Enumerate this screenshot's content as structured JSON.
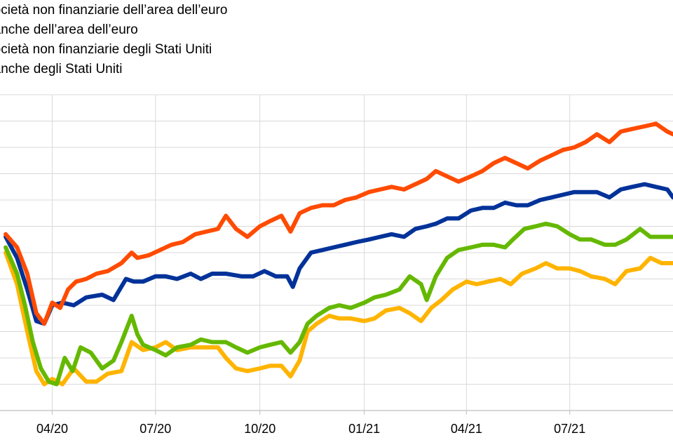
{
  "legend": {
    "items": [
      {
        "label": "Società non finanziarie dell’area dell’euro",
        "color": "#ff4b00"
      },
      {
        "label": "Banche dell’area dell’euro",
        "color": "#003299"
      },
      {
        "label": "Società non finanziarie degli Stati Uniti",
        "color": "#65b800"
      },
      {
        "label": "Banche degli Stati Uniti",
        "color": "#ffb400"
      }
    ]
  },
  "chart_data": {
    "type": "line",
    "title": "",
    "xlabel": "",
    "ylabel": "",
    "x_ticks": [
      "04/20",
      "07/20",
      "10/20",
      "01/21",
      "04/21",
      "07/21"
    ],
    "x_range": [
      "2020-02-15",
      "2021-09-30"
    ],
    "y_range": [
      0,
      12
    ],
    "grid": true,
    "series": [
      {
        "name": "Società non finanziarie dell’area dell’euro",
        "color": "#ff4b00",
        "points": [
          [
            "2020-02-20",
            6.7
          ],
          [
            "2020-03-01",
            6.2
          ],
          [
            "2020-03-10",
            5.2
          ],
          [
            "2020-03-18",
            3.7
          ],
          [
            "2020-03-25",
            3.3
          ],
          [
            "2020-04-01",
            4.1
          ],
          [
            "2020-04-08",
            3.9
          ],
          [
            "2020-04-15",
            4.6
          ],
          [
            "2020-04-22",
            4.9
          ],
          [
            "2020-05-01",
            5.0
          ],
          [
            "2020-05-10",
            5.2
          ],
          [
            "2020-05-20",
            5.3
          ],
          [
            "2020-06-01",
            5.6
          ],
          [
            "2020-06-10",
            6.0
          ],
          [
            "2020-06-15",
            5.8
          ],
          [
            "2020-06-25",
            5.9
          ],
          [
            "2020-07-05",
            6.1
          ],
          [
            "2020-07-15",
            6.3
          ],
          [
            "2020-07-25",
            6.4
          ],
          [
            "2020-08-05",
            6.7
          ],
          [
            "2020-08-15",
            6.8
          ],
          [
            "2020-08-25",
            6.9
          ],
          [
            "2020-09-01",
            7.4
          ],
          [
            "2020-09-10",
            6.9
          ],
          [
            "2020-09-20",
            6.6
          ],
          [
            "2020-10-01",
            7.0
          ],
          [
            "2020-10-10",
            7.2
          ],
          [
            "2020-10-20",
            7.4
          ],
          [
            "2020-10-28",
            6.8
          ],
          [
            "2020-11-05",
            7.5
          ],
          [
            "2020-11-15",
            7.7
          ],
          [
            "2020-11-25",
            7.8
          ],
          [
            "2020-12-05",
            7.8
          ],
          [
            "2020-12-15",
            8.0
          ],
          [
            "2020-12-25",
            8.1
          ],
          [
            "2021-01-05",
            8.3
          ],
          [
            "2021-01-15",
            8.4
          ],
          [
            "2021-01-25",
            8.5
          ],
          [
            "2021-02-05",
            8.4
          ],
          [
            "2021-02-15",
            8.6
          ],
          [
            "2021-02-25",
            8.8
          ],
          [
            "2021-03-05",
            9.1
          ],
          [
            "2021-03-15",
            8.9
          ],
          [
            "2021-03-25",
            8.7
          ],
          [
            "2021-04-05",
            8.9
          ],
          [
            "2021-04-15",
            9.1
          ],
          [
            "2021-04-25",
            9.4
          ],
          [
            "2021-05-05",
            9.6
          ],
          [
            "2021-05-15",
            9.4
          ],
          [
            "2021-05-25",
            9.2
          ],
          [
            "2021-06-05",
            9.5
          ],
          [
            "2021-06-15",
            9.7
          ],
          [
            "2021-06-25",
            9.9
          ],
          [
            "2021-07-05",
            10.0
          ],
          [
            "2021-07-15",
            10.2
          ],
          [
            "2021-07-25",
            10.5
          ],
          [
            "2021-08-05",
            10.2
          ],
          [
            "2021-08-15",
            10.6
          ],
          [
            "2021-08-25",
            10.7
          ],
          [
            "2021-09-05",
            10.8
          ],
          [
            "2021-09-15",
            10.9
          ],
          [
            "2021-09-25",
            10.6
          ],
          [
            "2021-09-30",
            10.5
          ]
        ]
      },
      {
        "name": "Banche dell’area dell’euro",
        "color": "#003299",
        "points": [
          [
            "2020-02-20",
            6.6
          ],
          [
            "2020-03-01",
            5.8
          ],
          [
            "2020-03-10",
            4.6
          ],
          [
            "2020-03-18",
            3.4
          ],
          [
            "2020-03-25",
            3.3
          ],
          [
            "2020-04-01",
            4.0
          ],
          [
            "2020-04-10",
            4.1
          ],
          [
            "2020-04-20",
            4.0
          ],
          [
            "2020-05-01",
            4.3
          ],
          [
            "2020-05-15",
            4.4
          ],
          [
            "2020-05-25",
            4.2
          ],
          [
            "2020-06-05",
            5.0
          ],
          [
            "2020-06-12",
            4.9
          ],
          [
            "2020-06-20",
            4.9
          ],
          [
            "2020-07-01",
            5.1
          ],
          [
            "2020-07-10",
            5.1
          ],
          [
            "2020-07-20",
            5.0
          ],
          [
            "2020-08-01",
            5.2
          ],
          [
            "2020-08-10",
            5.0
          ],
          [
            "2020-08-20",
            5.2
          ],
          [
            "2020-09-01",
            5.2
          ],
          [
            "2020-09-15",
            5.1
          ],
          [
            "2020-09-25",
            5.1
          ],
          [
            "2020-10-05",
            5.3
          ],
          [
            "2020-10-15",
            5.1
          ],
          [
            "2020-10-25",
            5.1
          ],
          [
            "2020-10-30",
            4.7
          ],
          [
            "2020-11-05",
            5.4
          ],
          [
            "2020-11-15",
            6.0
          ],
          [
            "2020-11-25",
            6.1
          ],
          [
            "2020-12-05",
            6.2
          ],
          [
            "2020-12-15",
            6.3
          ],
          [
            "2020-12-25",
            6.4
          ],
          [
            "2021-01-05",
            6.5
          ],
          [
            "2021-01-15",
            6.6
          ],
          [
            "2021-01-25",
            6.7
          ],
          [
            "2021-02-05",
            6.6
          ],
          [
            "2021-02-15",
            6.9
          ],
          [
            "2021-02-25",
            7.0
          ],
          [
            "2021-03-05",
            7.1
          ],
          [
            "2021-03-15",
            7.3
          ],
          [
            "2021-03-25",
            7.3
          ],
          [
            "2021-04-05",
            7.6
          ],
          [
            "2021-04-15",
            7.7
          ],
          [
            "2021-04-25",
            7.7
          ],
          [
            "2021-05-05",
            7.9
          ],
          [
            "2021-05-15",
            7.8
          ],
          [
            "2021-05-25",
            7.8
          ],
          [
            "2021-06-05",
            8.0
          ],
          [
            "2021-06-15",
            8.1
          ],
          [
            "2021-06-25",
            8.2
          ],
          [
            "2021-07-05",
            8.3
          ],
          [
            "2021-07-15",
            8.3
          ],
          [
            "2021-07-25",
            8.3
          ],
          [
            "2021-08-05",
            8.1
          ],
          [
            "2021-08-15",
            8.4
          ],
          [
            "2021-08-25",
            8.5
          ],
          [
            "2021-09-05",
            8.6
          ],
          [
            "2021-09-15",
            8.5
          ],
          [
            "2021-09-25",
            8.4
          ],
          [
            "2021-09-30",
            8.1
          ]
        ]
      },
      {
        "name": "Società non finanziarie degli Stati Uniti",
        "color": "#65b800",
        "points": [
          [
            "2020-02-20",
            6.2
          ],
          [
            "2020-03-01",
            5.2
          ],
          [
            "2020-03-08",
            4.0
          ],
          [
            "2020-03-15",
            2.6
          ],
          [
            "2020-03-22",
            1.6
          ],
          [
            "2020-03-29",
            1.1
          ],
          [
            "2020-04-05",
            1.0
          ],
          [
            "2020-04-12",
            2.0
          ],
          [
            "2020-04-19",
            1.5
          ],
          [
            "2020-04-26",
            2.4
          ],
          [
            "2020-05-05",
            2.2
          ],
          [
            "2020-05-15",
            1.6
          ],
          [
            "2020-05-25",
            1.9
          ],
          [
            "2020-06-01",
            2.6
          ],
          [
            "2020-06-10",
            3.6
          ],
          [
            "2020-06-15",
            2.9
          ],
          [
            "2020-06-20",
            2.5
          ],
          [
            "2020-07-01",
            2.3
          ],
          [
            "2020-07-10",
            2.1
          ],
          [
            "2020-07-20",
            2.4
          ],
          [
            "2020-08-01",
            2.5
          ],
          [
            "2020-08-10",
            2.7
          ],
          [
            "2020-08-20",
            2.6
          ],
          [
            "2020-09-01",
            2.6
          ],
          [
            "2020-09-10",
            2.4
          ],
          [
            "2020-09-20",
            2.2
          ],
          [
            "2020-10-01",
            2.4
          ],
          [
            "2020-10-10",
            2.5
          ],
          [
            "2020-10-20",
            2.6
          ],
          [
            "2020-10-28",
            2.2
          ],
          [
            "2020-11-05",
            2.6
          ],
          [
            "2020-11-12",
            3.3
          ],
          [
            "2020-11-20",
            3.6
          ],
          [
            "2020-12-01",
            3.9
          ],
          [
            "2020-12-10",
            4.0
          ],
          [
            "2020-12-20",
            3.9
          ],
          [
            "2021-01-01",
            4.1
          ],
          [
            "2021-01-10",
            4.3
          ],
          [
            "2021-01-20",
            4.4
          ],
          [
            "2021-02-01",
            4.6
          ],
          [
            "2021-02-10",
            5.1
          ],
          [
            "2021-02-20",
            4.8
          ],
          [
            "2021-02-25",
            4.2
          ],
          [
            "2021-03-05",
            5.1
          ],
          [
            "2021-03-15",
            5.8
          ],
          [
            "2021-03-25",
            6.1
          ],
          [
            "2021-04-05",
            6.2
          ],
          [
            "2021-04-15",
            6.3
          ],
          [
            "2021-04-25",
            6.3
          ],
          [
            "2021-05-05",
            6.2
          ],
          [
            "2021-05-12",
            6.5
          ],
          [
            "2021-05-22",
            6.9
          ],
          [
            "2021-06-01",
            7.0
          ],
          [
            "2021-06-10",
            7.1
          ],
          [
            "2021-06-20",
            7.0
          ],
          [
            "2021-07-01",
            6.7
          ],
          [
            "2021-07-10",
            6.5
          ],
          [
            "2021-07-20",
            6.5
          ],
          [
            "2021-08-01",
            6.3
          ],
          [
            "2021-08-10",
            6.3
          ],
          [
            "2021-08-20",
            6.5
          ],
          [
            "2021-09-01",
            6.9
          ],
          [
            "2021-09-10",
            6.6
          ],
          [
            "2021-09-20",
            6.6
          ],
          [
            "2021-09-30",
            6.6
          ]
        ]
      },
      {
        "name": "Banche degli Stati Uniti",
        "color": "#ffb400",
        "points": [
          [
            "2020-02-20",
            6.0
          ],
          [
            "2020-03-01",
            4.8
          ],
          [
            "2020-03-10",
            3.0
          ],
          [
            "2020-03-18",
            1.5
          ],
          [
            "2020-03-25",
            1.0
          ],
          [
            "2020-04-01",
            1.2
          ],
          [
            "2020-04-10",
            1.0
          ],
          [
            "2020-04-20",
            1.6
          ],
          [
            "2020-05-01",
            1.1
          ],
          [
            "2020-05-10",
            1.1
          ],
          [
            "2020-05-20",
            1.4
          ],
          [
            "2020-06-01",
            1.5
          ],
          [
            "2020-06-10",
            2.6
          ],
          [
            "2020-06-20",
            2.3
          ],
          [
            "2020-07-01",
            2.4
          ],
          [
            "2020-07-10",
            2.6
          ],
          [
            "2020-07-20",
            2.3
          ],
          [
            "2020-08-01",
            2.4
          ],
          [
            "2020-08-15",
            2.4
          ],
          [
            "2020-08-25",
            2.4
          ],
          [
            "2020-09-01",
            2.0
          ],
          [
            "2020-09-10",
            1.6
          ],
          [
            "2020-09-20",
            1.5
          ],
          [
            "2020-10-01",
            1.6
          ],
          [
            "2020-10-10",
            1.7
          ],
          [
            "2020-10-20",
            1.7
          ],
          [
            "2020-10-28",
            1.3
          ],
          [
            "2020-11-05",
            1.9
          ],
          [
            "2020-11-12",
            3.0
          ],
          [
            "2020-11-20",
            3.3
          ],
          [
            "2020-12-01",
            3.6
          ],
          [
            "2020-12-10",
            3.5
          ],
          [
            "2020-12-20",
            3.5
          ],
          [
            "2021-01-01",
            3.4
          ],
          [
            "2021-01-10",
            3.5
          ],
          [
            "2021-01-20",
            3.8
          ],
          [
            "2021-02-01",
            3.9
          ],
          [
            "2021-02-10",
            3.7
          ],
          [
            "2021-02-20",
            3.4
          ],
          [
            "2021-03-01",
            3.9
          ],
          [
            "2021-03-10",
            4.2
          ],
          [
            "2021-03-20",
            4.6
          ],
          [
            "2021-04-01",
            4.9
          ],
          [
            "2021-04-10",
            4.8
          ],
          [
            "2021-04-20",
            4.9
          ],
          [
            "2021-05-01",
            5.0
          ],
          [
            "2021-05-10",
            4.8
          ],
          [
            "2021-05-20",
            5.2
          ],
          [
            "2021-06-01",
            5.4
          ],
          [
            "2021-06-10",
            5.6
          ],
          [
            "2021-06-20",
            5.4
          ],
          [
            "2021-07-01",
            5.4
          ],
          [
            "2021-07-10",
            5.3
          ],
          [
            "2021-07-20",
            5.1
          ],
          [
            "2021-08-01",
            5.0
          ],
          [
            "2021-08-10",
            4.8
          ],
          [
            "2021-08-20",
            5.3
          ],
          [
            "2021-09-01",
            5.4
          ],
          [
            "2021-09-10",
            5.8
          ],
          [
            "2021-09-20",
            5.6
          ],
          [
            "2021-09-30",
            5.6
          ]
        ]
      }
    ]
  }
}
